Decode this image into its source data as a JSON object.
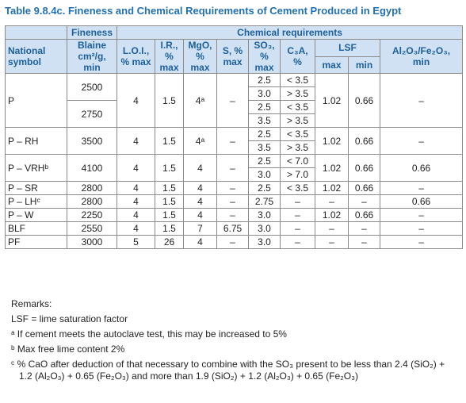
{
  "title": "Table 9.8.4c. Fineness and Chemical Requirements of Cement Produced in Egypt",
  "table": {
    "header": {
      "fineness": "Fineness",
      "chemical": "Chemical requirements",
      "symbol": "National symbol",
      "blaine": "Blaine cm²/g, min",
      "loi": "L.O.I., % max",
      "ir": "I.R., % max",
      "mgo": "MgO, % max",
      "s": "S, % max",
      "so3": "SO₃, % max",
      "c3a": "C₃A, %",
      "lsf": "LSF",
      "lsf_max": "max",
      "lsf_min": "min",
      "al_fe": "Al₂O₃/Fe₂O₃, min"
    },
    "rows": [
      {
        "symbol": "P",
        "fineness": [
          "2500",
          "2750"
        ],
        "loi": "4",
        "ir": "1.5",
        "mgo": "4ᵃ",
        "s": "–",
        "so3": [
          "2.5",
          "3.0",
          "2.5",
          "3.5"
        ],
        "c3a": [
          "< 3.5",
          "> 3.5",
          "< 3.5",
          "> 3.5"
        ],
        "lsf_max": "1.02",
        "lsf_min": "0.66",
        "al_fe": "–"
      },
      {
        "symbol": "P – RH",
        "fineness": [
          "3500"
        ],
        "loi": "4",
        "ir": "1.5",
        "mgo": "4ᵃ",
        "s": "–",
        "so3": [
          "2.5",
          "3.5"
        ],
        "c3a": [
          "< 3.5",
          "> 3.5"
        ],
        "lsf_max": "1.02",
        "lsf_min": "0.66",
        "al_fe": "–"
      },
      {
        "symbol": "P – VRHᵇ",
        "fineness": [
          "4100"
        ],
        "loi": "4",
        "ir": "1.5",
        "mgo": "4",
        "s": "–",
        "so3": [
          "2.5",
          "3.0"
        ],
        "c3a": [
          "< 7.0",
          "> 7.0"
        ],
        "lsf_max": "1.02",
        "lsf_min": "0.66",
        "al_fe": "0.66"
      },
      {
        "symbol": "P – SR",
        "fineness": [
          "2800"
        ],
        "loi": "4",
        "ir": "1.5",
        "mgo": "4",
        "s": "–",
        "so3": [
          "2.5"
        ],
        "c3a": [
          "< 3.5"
        ],
        "lsf_max": "1.02",
        "lsf_min": "0.66",
        "al_fe": "–"
      },
      {
        "symbol": "P – LHᶜ",
        "fineness": [
          "2800"
        ],
        "loi": "4",
        "ir": "1.5",
        "mgo": "4",
        "s": "–",
        "so3": [
          "2.75"
        ],
        "c3a": [
          "–"
        ],
        "lsf_max": "–",
        "lsf_min": "–",
        "al_fe": "0.66"
      },
      {
        "symbol": "P – W",
        "fineness": [
          "2250"
        ],
        "loi": "4",
        "ir": "1.5",
        "mgo": "4",
        "s": "–",
        "so3": [
          "3.0"
        ],
        "c3a": [
          "–"
        ],
        "lsf_max": "1.02",
        "lsf_min": "0.66",
        "al_fe": "–"
      },
      {
        "symbol": "BLF",
        "fineness": [
          "2550"
        ],
        "loi": "4",
        "ir": "1.5",
        "mgo": "7",
        "s": "6.75",
        "so3": [
          "3.0"
        ],
        "c3a": [
          "–"
        ],
        "lsf_max": "–",
        "lsf_min": "–",
        "al_fe": "–"
      },
      {
        "symbol": "PF",
        "fineness": [
          "3000"
        ],
        "loi": "5",
        "ir": "26",
        "mgo": "4",
        "s": "–",
        "so3": [
          "3.0"
        ],
        "c3a": [
          "–"
        ],
        "lsf_max": "–",
        "lsf_min": "–",
        "al_fe": "–"
      }
    ]
  },
  "remarks": {
    "heading": "Remarks:",
    "lines": [
      "LSF = lime saturation factor",
      "ᵃ If cement meets the autoclave test, this may be increased to 5%",
      "ᵇ Max free lime content 2%",
      "ᶜ % CaO after deduction of that necessary to combine with the SO₃ present to be less than 2.4 (SiO₂) + 1.2 (Al₂O₃) + 0.65 (Fe₂O₃) and more than 1.9 (SiO₂) + 1.2 (Al₂O₃) + 0.65 (Fe₂O₃)"
    ]
  }
}
